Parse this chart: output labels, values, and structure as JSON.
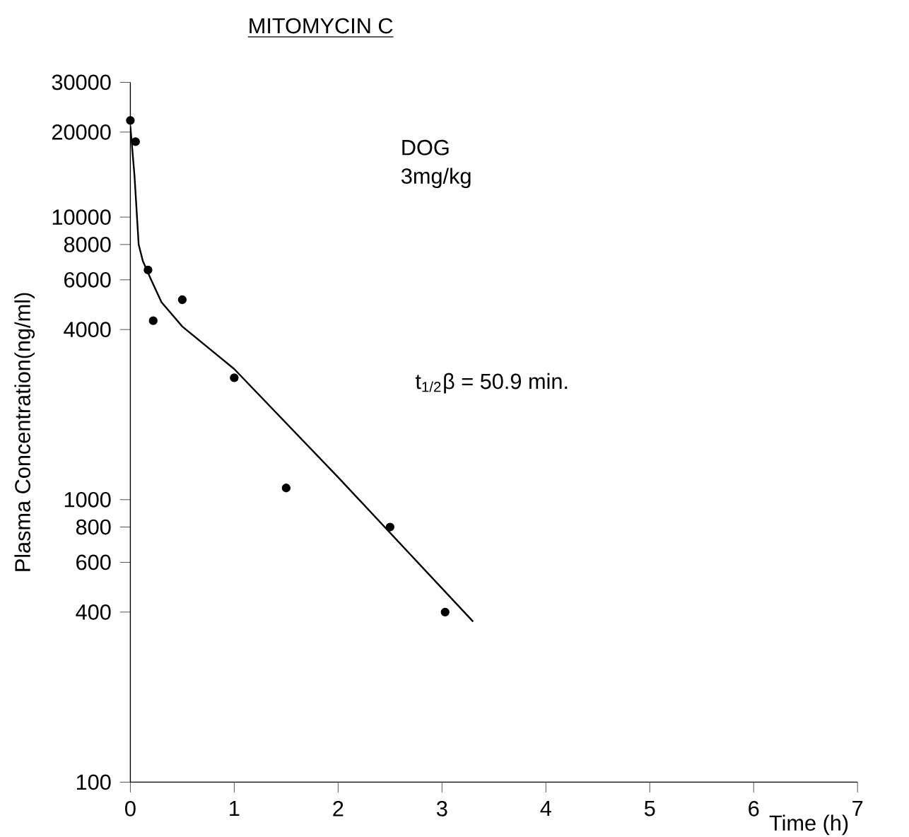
{
  "chart_data": {
    "type": "scatter",
    "title": "MITOMYCIN C",
    "xlabel": "Time (h)",
    "ylabel": "Plasma Concentration(ng/ml)",
    "annotations": [
      "DOG",
      "3mg/kg",
      "t$_{1/2}$β = 50.9 min."
    ],
    "xlim": [
      0,
      7
    ],
    "ylim": [
      100,
      30000
    ],
    "log": "y",
    "xticks": [
      0,
      1,
      2,
      3,
      4,
      5,
      6,
      7
    ],
    "yticks": [
      100,
      400,
      600,
      800,
      1000,
      4000,
      6000,
      8000,
      10000,
      20000,
      30000
    ],
    "grid": false,
    "series": [
      {
        "marker": "circle",
        "color": "#000000",
        "x": [
          0.0,
          0.05,
          0.17,
          0.22,
          0.5,
          1.0,
          1.5,
          2.5,
          3.03
        ],
        "values": [
          22000,
          18500,
          6500,
          4300,
          5100,
          2700,
          1100,
          800,
          400
        ]
      },
      {
        "type": "line",
        "marker": "none",
        "color": "#000000",
        "x": [
          0.0,
          0.04,
          0.08,
          0.12,
          0.2,
          0.3,
          0.5,
          1.0,
          2.0,
          3.3
        ],
        "values": [
          21000,
          14000,
          8000,
          7000,
          6000,
          5000,
          4100,
          2900,
          1200,
          370
        ]
      }
    ]
  }
}
